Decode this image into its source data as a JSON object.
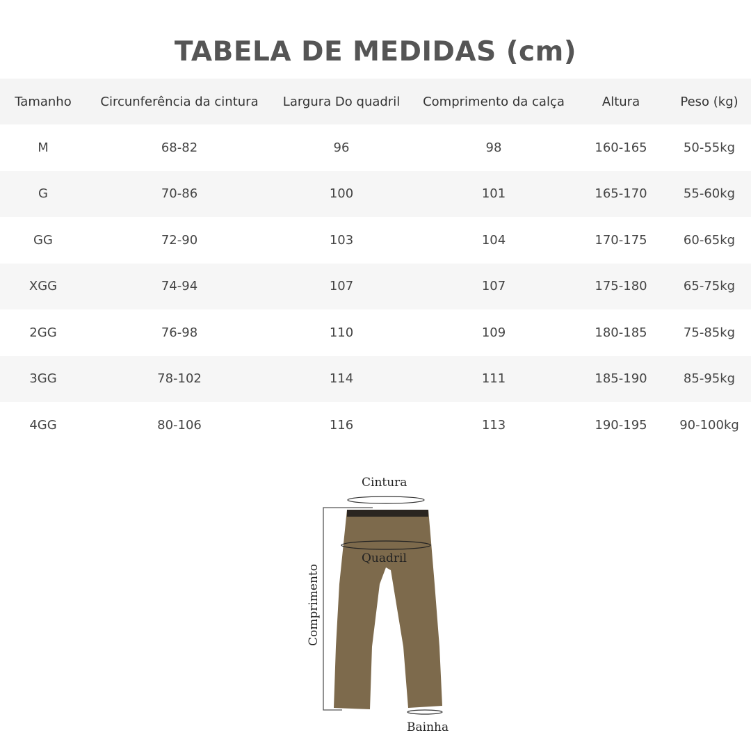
{
  "title": "TABELA DE MEDIDAS (cm)",
  "table": {
    "headers": [
      "Tamanho",
      "Circunferência da cintura",
      "Largura Do quadril",
      "Comprimento da calça",
      "Altura",
      "Peso (kg)"
    ],
    "rows": [
      [
        "M",
        "68-82",
        "96",
        "98",
        "160-165",
        "50-55kg"
      ],
      [
        "G",
        "70-86",
        "100",
        "101",
        "165-170",
        "55-60kg"
      ],
      [
        "GG",
        "72-90",
        "103",
        "104",
        "170-175",
        "60-65kg"
      ],
      [
        "XGG",
        "74-94",
        "107",
        "107",
        "175-180",
        "65-75kg"
      ],
      [
        "2GG",
        "76-98",
        "110",
        "109",
        "180-185",
        "75-85kg"
      ],
      [
        "3GG",
        "78-102",
        "114",
        "111",
        "185-190",
        "85-95kg"
      ],
      [
        "4GG",
        "80-106",
        "116",
        "113",
        "190-195",
        "90-100kg"
      ]
    ]
  },
  "diagram": {
    "waist_label": "Cintura",
    "hip_label": "Quadril",
    "length_label": "Comprimento",
    "hem_label": "Bainha",
    "pants_color": "#7d6a4c"
  }
}
